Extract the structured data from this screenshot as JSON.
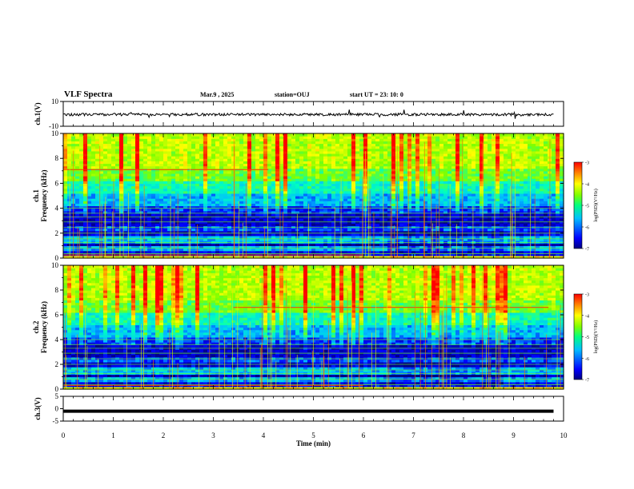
{
  "header": {
    "title": "VLF Spectra",
    "date": "Mar.9 , 2025",
    "station": "station=OUJ",
    "start_ut": "start UT = 23: 10: 0"
  },
  "chart_data": [
    {
      "type": "line",
      "panel": "ch.1 waveform",
      "ylabel": "ch.1(V)",
      "ylim": [
        -10,
        10
      ],
      "yticks": [
        "10",
        "-10"
      ],
      "description_values": {
        "baseline": -0.5,
        "typical_amplitude": 1.5
      }
    },
    {
      "type": "heatmap",
      "panel": "ch.1 spectrogram",
      "ylabel_line1": "ch.1",
      "ylabel_line2": "Frequency (kHz)",
      "ylim": [
        0,
        10
      ],
      "yticks": [
        "0",
        "2",
        "4",
        "6",
        "8",
        "10"
      ],
      "colorbar": {
        "label": "log(PSD)(V²/Hz)",
        "range": [
          -7,
          -3
        ],
        "ticks": [
          "-3",
          "-4",
          "-5",
          "-6",
          "-7"
        ]
      }
    },
    {
      "type": "heatmap",
      "panel": "ch.2 spectrogram",
      "ylabel_line1": "ch.2",
      "ylabel_line2": "Frequency (kHz)",
      "ylim": [
        0,
        10
      ],
      "yticks": [
        "0",
        "2",
        "4",
        "6",
        "8",
        "10"
      ],
      "colorbar": {
        "label": "log(PSD)(V²/Hz)",
        "range": [
          -7,
          -3
        ],
        "ticks": [
          "-3",
          "-4",
          "-5",
          "-6",
          "-7"
        ]
      }
    },
    {
      "type": "line",
      "panel": "ch.3 waveform",
      "ylabel": "ch.3(V)",
      "ylim": [
        -5,
        5
      ],
      "yticks": [
        "5",
        "0",
        "-5"
      ],
      "description_values": {
        "level": -1.0
      }
    }
  ],
  "xaxis": {
    "label": "Time (min)",
    "range": [
      0,
      10
    ],
    "ticks": [
      "0",
      "1",
      "2",
      "3",
      "4",
      "5",
      "6",
      "7",
      "8",
      "9",
      "10"
    ]
  },
  "colors": {
    "colormap": [
      "#00007f",
      "#0000ff",
      "#00bfff",
      "#00ffbf",
      "#7fff00",
      "#ffff00",
      "#ff7f00",
      "#ff0000"
    ]
  }
}
